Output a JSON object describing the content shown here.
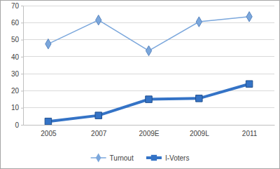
{
  "chart_data": {
    "type": "line",
    "categories": [
      "2005",
      "2007",
      "2009E",
      "2009L",
      "2011"
    ],
    "series": [
      {
        "name": "Turnout",
        "color": "#7ba7dc",
        "marker": "diamond",
        "line_style": "solid",
        "values": [
          47.5,
          61.5,
          43.5,
          60.5,
          63.5
        ]
      },
      {
        "name": "I-Voters",
        "color": "#3473c6",
        "marker": "square",
        "line_style": "solid",
        "values": [
          2,
          5.5,
          15,
          15.5,
          24
        ]
      }
    ],
    "ylim": [
      0,
      70
    ],
    "yticks": [
      0,
      10,
      20,
      30,
      40,
      50,
      60,
      70
    ],
    "grid": true,
    "legend": "bottom"
  }
}
